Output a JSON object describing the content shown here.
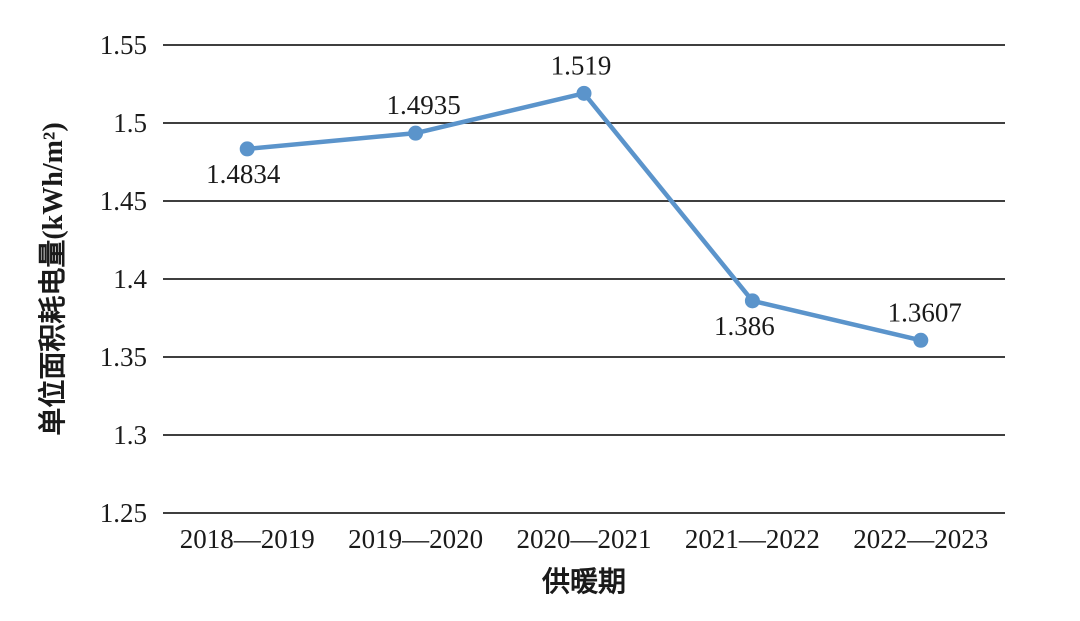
{
  "page": {
    "background_color": "#ffffff"
  },
  "chart_data": {
    "type": "line",
    "title": "",
    "xlabel": "供暖期",
    "ylabel": "单位面积耗电量(kWh/m²)",
    "categories": [
      "2018—2019",
      "2019—2020",
      "2020—2021",
      "2021—2022",
      "2022—2023"
    ],
    "series": [
      {
        "values": [
          1.4834,
          1.4935,
          1.519,
          1.386,
          1.3607
        ]
      }
    ],
    "data_labels": [
      {
        "text": "1.4834",
        "pos": "below",
        "dx": -4
      },
      {
        "text": "1.4935",
        "pos": "above",
        "dx": 8
      },
      {
        "text": "1.519",
        "pos": "above",
        "dx": -3
      },
      {
        "text": "1.386",
        "pos": "below",
        "dx": -8
      },
      {
        "text": "1.3607",
        "pos": "above",
        "dx": 4
      }
    ],
    "ylim": [
      1.25,
      1.55
    ],
    "y_ticks": [
      1.25,
      1.3,
      1.35,
      1.4,
      1.45,
      1.5,
      1.55
    ],
    "y_tick_labels": [
      "1.25",
      "1.3",
      "1.35",
      "1.4",
      "1.45",
      "1.5",
      "1.55"
    ],
    "grid": "horizontal-only",
    "legend_position": "none",
    "line_color": "#5b94cb",
    "marker": "circle",
    "grid_color": "#3f3f3f",
    "text_color": "#1a1a1a"
  }
}
